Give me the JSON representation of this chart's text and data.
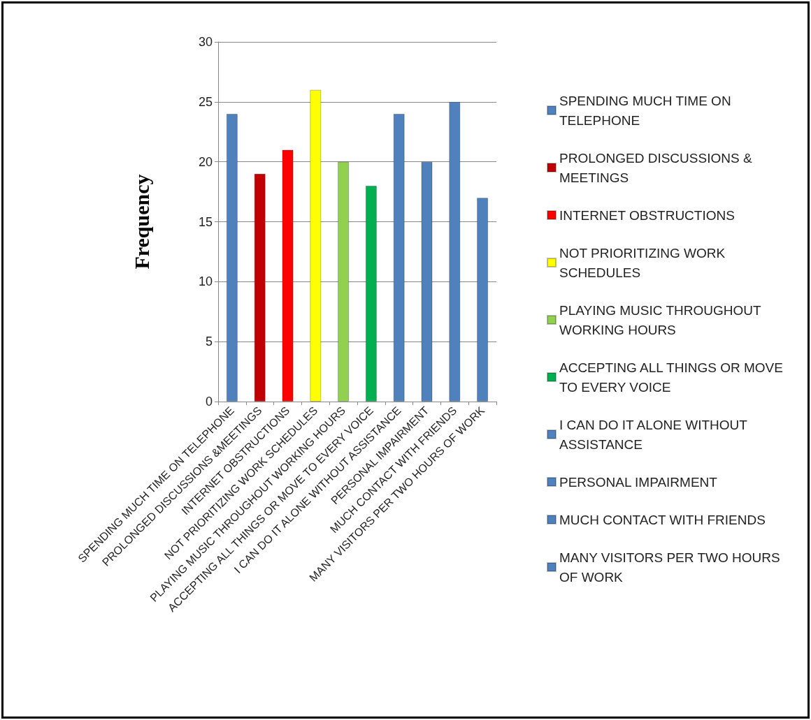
{
  "chart_data": {
    "type": "bar",
    "ylabel": "Frequency",
    "categories": [
      "SPENDING MUCH TIME ON TELEPHONE",
      "PROLONGED DISCUSSIONS &MEETINGS",
      "INTERNET OBSTRUCTIONS",
      "NOT PRIORITIZING WORK SCHEDULES",
      "PLAYING MUSIC THROUGHOUT WORKING HOURS",
      "ACCEPTING ALL THINGS OR MOVE TO EVERY VOICE",
      "I CAN DO IT ALONE WITHOUT ASSISTANCE",
      "PERSONAL IMPAIRMENT",
      "MUCH CONTACT WITH FRIENDS",
      "MANY VISITORS PER TWO HOURS OF WORK"
    ],
    "series": [
      {
        "name": "SPENDING MUCH TIME ON TELEPHONE",
        "color": "#4f81bd",
        "values": [
          24,
          null,
          null,
          null,
          null,
          null,
          null,
          null,
          null,
          null
        ]
      },
      {
        "name": "PROLONGED DISCUSSIONS &MEETINGS",
        "color": "#c00000",
        "values": [
          null,
          19,
          null,
          null,
          null,
          null,
          null,
          null,
          null,
          null
        ]
      },
      {
        "name": "INTERNET OBSTRUCTIONS",
        "color": "#ff0000",
        "values": [
          null,
          null,
          21,
          null,
          null,
          null,
          null,
          null,
          null,
          null
        ]
      },
      {
        "name": "NOT PRIORITIZING WORK SCHEDULES",
        "color": "#ffff00",
        "values": [
          null,
          null,
          null,
          26,
          null,
          null,
          null,
          null,
          null,
          null
        ]
      },
      {
        "name": "PLAYING MUSIC THROUGHOUT WORKING HOURS",
        "color": "#92d050",
        "values": [
          null,
          null,
          null,
          null,
          20,
          null,
          null,
          null,
          null,
          null
        ]
      },
      {
        "name": "ACCEPTING ALL THINGS OR MOVE TO EVERY VOICE",
        "color": "#00b050",
        "values": [
          null,
          null,
          null,
          null,
          null,
          18,
          null,
          null,
          null,
          null
        ]
      },
      {
        "name": "I CAN DO IT ALONE WITHOUT ASSISTANCE",
        "color": "#4f81bd",
        "values": [
          null,
          null,
          null,
          null,
          null,
          null,
          24,
          null,
          null,
          null
        ]
      },
      {
        "name": "PERSONAL IMPAIRMENT",
        "color": "#4f81bd",
        "values": [
          null,
          null,
          null,
          null,
          null,
          null,
          null,
          20,
          null,
          null
        ]
      },
      {
        "name": "MUCH CONTACT WITH FRIENDS",
        "color": "#4f81bd",
        "values": [
          null,
          null,
          null,
          null,
          null,
          null,
          null,
          null,
          25,
          null
        ]
      },
      {
        "name": "MANY VISITORS PER TWO HOURS OF WORK",
        "color": "#4f81bd",
        "values": [
          null,
          null,
          null,
          null,
          null,
          null,
          null,
          null,
          null,
          17
        ]
      }
    ],
    "ylim": [
      0,
      30
    ],
    "yticks": [
      0,
      5,
      10,
      15,
      20,
      25,
      30
    ],
    "grid": "y",
    "legend": "right"
  }
}
